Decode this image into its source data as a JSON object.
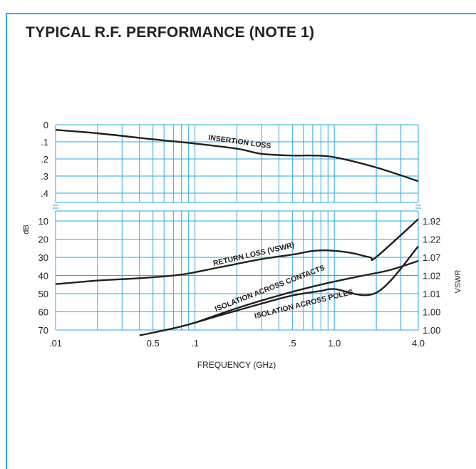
{
  "title": "TYPICAL R.F. PERFORMANCE (NOTE 1)",
  "chart_data": {
    "type": "line",
    "xlabel": "FREQUENCY (GHz)",
    "x_scale": "log",
    "xlim": [
      0.01,
      4.0
    ],
    "x_tick_labels": [
      ".01",
      "0.5",
      ".1",
      ".5",
      "1.0",
      "4.0"
    ],
    "left_axis_label": "dB",
    "right_axis_label": "VSWR",
    "upper_panel": {
      "ylim": [
        0,
        0.4
      ],
      "tick_labels": [
        "0",
        ".1",
        ".2",
        ".3",
        ".4"
      ]
    },
    "lower_panel": {
      "ylim": [
        10,
        70
      ],
      "tick_labels": [
        "10",
        "20",
        "30",
        "40",
        "50",
        "60",
        "70"
      ],
      "vswr_tick_labels": [
        "1.92",
        "1.22",
        "1.07",
        "1.02",
        "1.01",
        "1.00",
        "1.00"
      ]
    },
    "grid": true,
    "series": [
      {
        "name": "INSERTION LOSS",
        "panel": "upper",
        "x": [
          0.01,
          0.02,
          0.05,
          0.1,
          0.2,
          0.3,
          0.5,
          0.7,
          1.0,
          2.0,
          4.0
        ],
        "y": [
          0.03,
          0.05,
          0.085,
          0.11,
          0.14,
          0.17,
          0.18,
          0.18,
          0.19,
          0.25,
          0.33
        ]
      },
      {
        "name": "RETURN LOSS (VSWR)",
        "panel": "lower",
        "x": [
          0.01,
          0.02,
          0.04,
          0.08,
          0.15,
          0.3,
          0.5,
          0.7,
          0.9,
          1.3,
          1.8,
          2.0,
          4.0
        ],
        "y": [
          44.8,
          42.8,
          41.5,
          39.5,
          35.5,
          31,
          28.5,
          26.5,
          26.2,
          27.5,
          30.0,
          29.8,
          9.0
        ]
      },
      {
        "name": "ISOLATION ACROSS CONTACTS",
        "panel": "lower",
        "x": [
          0.1,
          0.2,
          0.4,
          0.8,
          1.5,
          2.5,
          4.0
        ],
        "y": [
          66,
          58,
          51,
          45,
          40.5,
          37,
          32
        ]
      },
      {
        "name": "ISOLATION ACROSS POLES",
        "panel": "lower",
        "x": [
          0.04,
          0.08,
          0.15,
          0.3,
          0.5,
          0.8,
          1.0,
          2.0,
          4.0
        ],
        "y": [
          73,
          68,
          62,
          55.5,
          51,
          48.5,
          47.5,
          49.5,
          24
        ]
      }
    ]
  }
}
